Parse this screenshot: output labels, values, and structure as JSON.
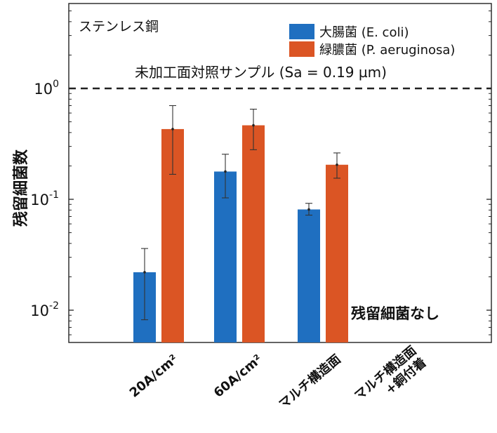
{
  "chart_data": {
    "type": "bar",
    "yscale": "log",
    "ylim": [
      0.005,
      5
    ],
    "ylabel": "残留細菌数",
    "material_label": "ステンレス鋼",
    "categories": [
      "20A/cm²",
      "60A/cm²",
      "マルチ構造面",
      "マルチ構造面\n+銅付着"
    ],
    "series": [
      {
        "name": "大腸菌 (E. coli)",
        "color": "#1f6fc0",
        "values": [
          0.022,
          0.178,
          0.081,
          null
        ],
        "err_low": [
          0.0082,
          0.103,
          0.072,
          null
        ],
        "err_high": [
          0.036,
          0.255,
          0.092,
          null
        ]
      },
      {
        "name": "緑膿菌 (P. aeruginosa)",
        "color": "#db5524",
        "values": [
          0.43,
          0.465,
          0.205,
          null
        ],
        "err_low": [
          0.168,
          0.28,
          0.155,
          null
        ],
        "err_high": [
          0.7,
          0.65,
          0.262,
          null
        ]
      }
    ],
    "reference_line": {
      "value": 1.0,
      "label": "未加工面対照サンプル (Sa = 0.19 µm)"
    },
    "annotation": "残留細菌なし",
    "yticks": [
      {
        "value": 0.01,
        "base": "10",
        "exp": "-2"
      },
      {
        "value": 0.1,
        "base": "10",
        "exp": "-1"
      },
      {
        "value": 1,
        "base": "10",
        "exp": "0"
      }
    ],
    "legend_position": "top-right",
    "grid": false
  }
}
